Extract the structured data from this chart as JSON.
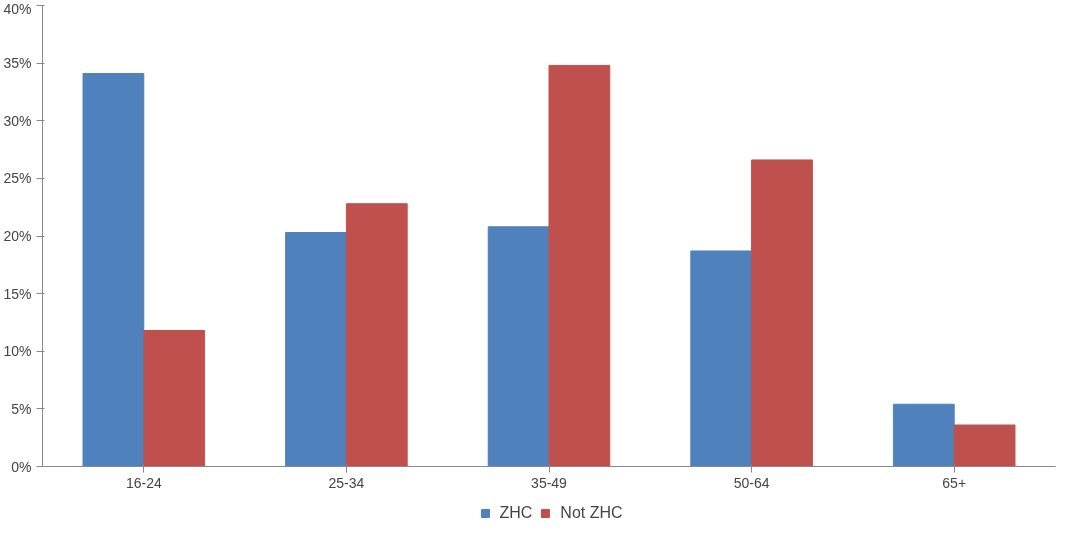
{
  "chart_data": {
    "type": "bar",
    "categories": [
      "16-24",
      "25-34",
      "35-49",
      "50-64",
      "65+"
    ],
    "series": [
      {
        "name": "ZHC",
        "color": "#4f81bd",
        "values": [
          34.1,
          20.3,
          20.8,
          18.7,
          5.4
        ]
      },
      {
        "name": "Not ZHC",
        "color": "#c0504d",
        "values": [
          11.8,
          22.8,
          34.8,
          26.6,
          3.6
        ]
      }
    ],
    "ylim": [
      0,
      40
    ],
    "yticks": [
      {
        "value": 0,
        "label": "0%"
      },
      {
        "value": 5,
        "label": "5%"
      },
      {
        "value": 10,
        "label": "10%"
      },
      {
        "value": 15,
        "label": "15%"
      },
      {
        "value": 20,
        "label": "20%"
      },
      {
        "value": 25,
        "label": "25%"
      },
      {
        "value": 30,
        "label": "30%"
      },
      {
        "value": 35,
        "label": "35%"
      },
      {
        "value": 40,
        "label": "40%"
      }
    ],
    "grid": false,
    "legend": "bottom"
  }
}
